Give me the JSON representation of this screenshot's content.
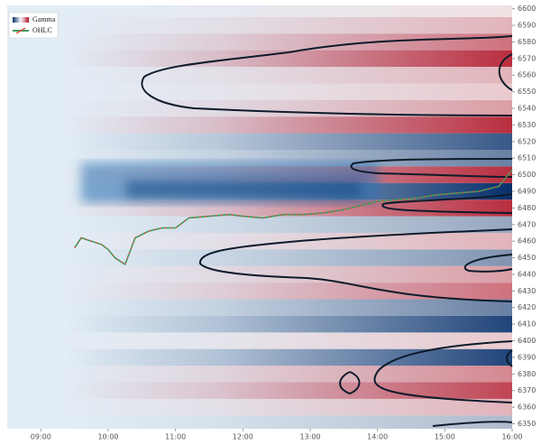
{
  "chart_data": {
    "type": "gamma-heatmap",
    "legend": [
      "Gamma",
      "OHLC"
    ],
    "xlim": [
      8.5,
      16.0
    ],
    "xticks": [
      {
        "value": 9,
        "label": "09:00"
      },
      {
        "value": 10,
        "label": "10:00"
      },
      {
        "value": 11,
        "label": "11:00"
      },
      {
        "value": 12,
        "label": "12:00"
      },
      {
        "value": 13,
        "label": "13:00"
      },
      {
        "value": 14,
        "label": "14:00"
      },
      {
        "value": 15,
        "label": "15:00"
      },
      {
        "value": 16,
        "label": "16:00"
      }
    ],
    "ylim": [
      6347,
      6602
    ],
    "yticks": [
      6350,
      6360,
      6370,
      6380,
      6390,
      6400,
      6410,
      6420,
      6430,
      6440,
      6450,
      6460,
      6470,
      6480,
      6490,
      6500,
      6510,
      6520,
      6530,
      6540,
      6550,
      6560,
      6570,
      6580,
      6590,
      6600
    ],
    "gamma": {
      "levels": [
        6350,
        6360,
        6370,
        6380,
        6390,
        6400,
        6410,
        6420,
        6430,
        6440,
        6450,
        6460,
        6470,
        6480,
        6490,
        6500,
        6510,
        6520,
        6530,
        6540,
        6550,
        6560,
        6570,
        6580,
        6590,
        6600
      ],
      "values": [
        -0.3,
        0.3,
        0.8,
        0.5,
        -0.9,
        0.2,
        -0.9,
        -0.6,
        0.6,
        0.4,
        -0.5,
        0.3,
        -0.4,
        0.9,
        -1.0,
        0.9,
        -0.6,
        -0.8,
        0.9,
        0.4,
        0.2,
        0.3,
        0.9,
        0.6,
        0.3,
        0.1
      ],
      "positive_color": "#b2182b",
      "negative_color": "#08306b"
    },
    "series": [
      {
        "name": "OHLC",
        "color": "#3a9e5f",
        "x": [
          9.5,
          9.6,
          9.75,
          9.9,
          10.0,
          10.1,
          10.25,
          10.4,
          10.6,
          10.8,
          11.0,
          11.2,
          11.5,
          11.8,
          12.0,
          12.3,
          12.6,
          12.9,
          13.2,
          13.5,
          13.8,
          14.0,
          14.3,
          14.6,
          14.9,
          15.2,
          15.5,
          15.8,
          16.0
        ],
        "values": [
          6456,
          6462,
          6460,
          6458,
          6455,
          6450,
          6446,
          6462,
          6466,
          6468,
          6468,
          6474,
          6475,
          6476,
          6475,
          6474,
          6476,
          6476,
          6477,
          6479,
          6482,
          6484,
          6485,
          6486,
          6488,
          6489,
          6490,
          6493,
          6503
        ]
      }
    ]
  }
}
